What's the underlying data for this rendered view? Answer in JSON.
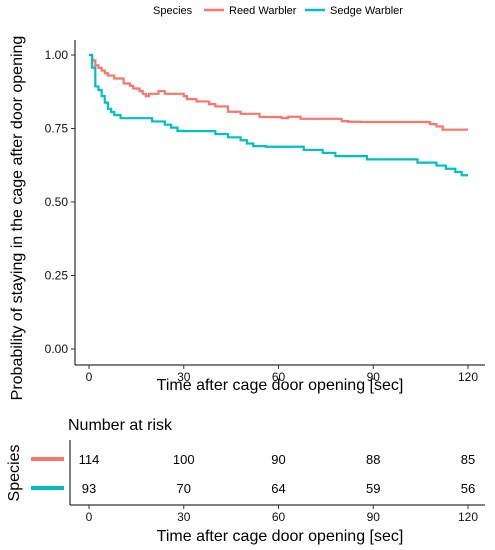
{
  "chart_data": [
    {
      "type": "line",
      "subtype": "step (Kaplan-Meier survival curve)",
      "title": "",
      "xlabel": "Time after cage door opening [sec]",
      "ylabel": "Probability of staying in the cage after door opening",
      "xlim": [
        -3,
        123
      ],
      "ylim": [
        -0.05,
        1.05
      ],
      "xticks": [
        0,
        30,
        60,
        90,
        120
      ],
      "yticks": [
        0.0,
        0.25,
        0.5,
        0.75,
        1.0
      ],
      "ytick_labels": [
        "0.00",
        "0.25",
        "0.50",
        "0.75",
        "1.00"
      ],
      "grid": false,
      "legend": {
        "title": "Species",
        "position": "top"
      },
      "series": [
        {
          "name": "Reed Warbler",
          "color": "#F8766D",
          "x": [
            0,
            1,
            2,
            3,
            4,
            5,
            6,
            8,
            11,
            13,
            14,
            16,
            17,
            18,
            19,
            22,
            24,
            30,
            31,
            34,
            38,
            40,
            44,
            48,
            54,
            61,
            63,
            67,
            80,
            82,
            86,
            108,
            110,
            112,
            120
          ],
          "y": [
            1.0,
            0.982,
            0.965,
            0.956,
            0.947,
            0.938,
            0.93,
            0.92,
            0.903,
            0.895,
            0.886,
            0.877,
            0.868,
            0.86,
            0.868,
            0.877,
            0.868,
            0.86,
            0.85,
            0.842,
            0.833,
            0.825,
            0.807,
            0.8,
            0.789,
            0.785,
            0.79,
            0.783,
            0.775,
            0.773,
            0.772,
            0.765,
            0.757,
            0.746,
            0.746
          ]
        },
        {
          "name": "Sedge Warbler",
          "color": "#00BFC4",
          "x": [
            0,
            1,
            2,
            3,
            4,
            5,
            6,
            7,
            8,
            10,
            20,
            24,
            26,
            28,
            30,
            40,
            44,
            48,
            50,
            52,
            56,
            68,
            74,
            78,
            88,
            104,
            110,
            113,
            116,
            118,
            120
          ],
          "y": [
            1.0,
            0.957,
            0.893,
            0.881,
            0.86,
            0.838,
            0.817,
            0.806,
            0.796,
            0.785,
            0.774,
            0.763,
            0.753,
            0.742,
            0.741,
            0.731,
            0.72,
            0.71,
            0.699,
            0.69,
            0.688,
            0.677,
            0.667,
            0.656,
            0.645,
            0.634,
            0.624,
            0.613,
            0.602,
            0.591,
            0.591
          ]
        }
      ]
    },
    {
      "type": "table",
      "title": "Number at risk",
      "xlabel": "Time after cage door opening [sec]",
      "ylabel": "Species",
      "xticks": [
        0,
        30,
        60,
        90,
        120
      ],
      "rows": [
        {
          "name": "Reed Warbler",
          "color": "#F8766D",
          "values": [
            114,
            100,
            90,
            88,
            85
          ]
        },
        {
          "name": "Sedge Warbler",
          "color": "#00BFC4",
          "values": [
            93,
            70,
            64,
            59,
            56
          ]
        }
      ]
    }
  ]
}
